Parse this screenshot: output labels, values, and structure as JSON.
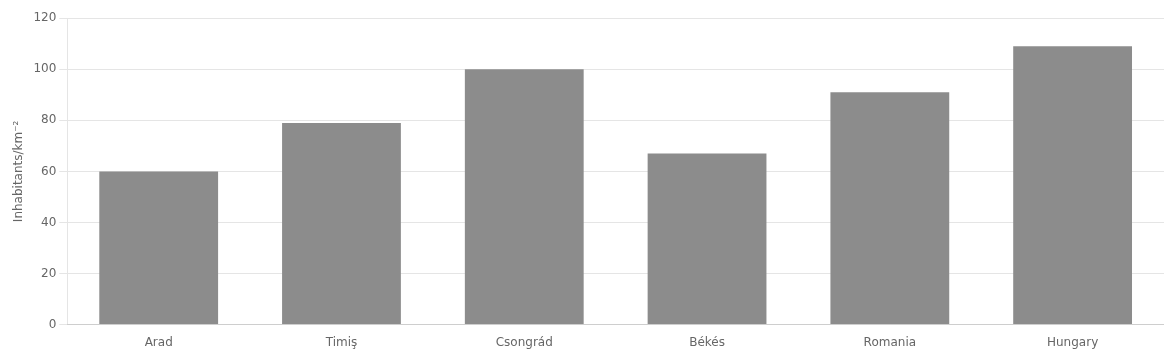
{
  "chart_data": {
    "type": "bar",
    "categories": [
      "Arad",
      "Timiş",
      "Csongrád",
      "Békés",
      "Romania",
      "Hungary"
    ],
    "values": [
      60,
      79,
      100,
      67,
      91,
      109
    ],
    "color": "#8c8c8c",
    "ylabel": "Inhabitants/km⁻²",
    "ylim": [
      0,
      120
    ],
    "yticks": [
      0,
      20,
      40,
      60,
      80,
      100,
      120
    ],
    "grid": true
  }
}
